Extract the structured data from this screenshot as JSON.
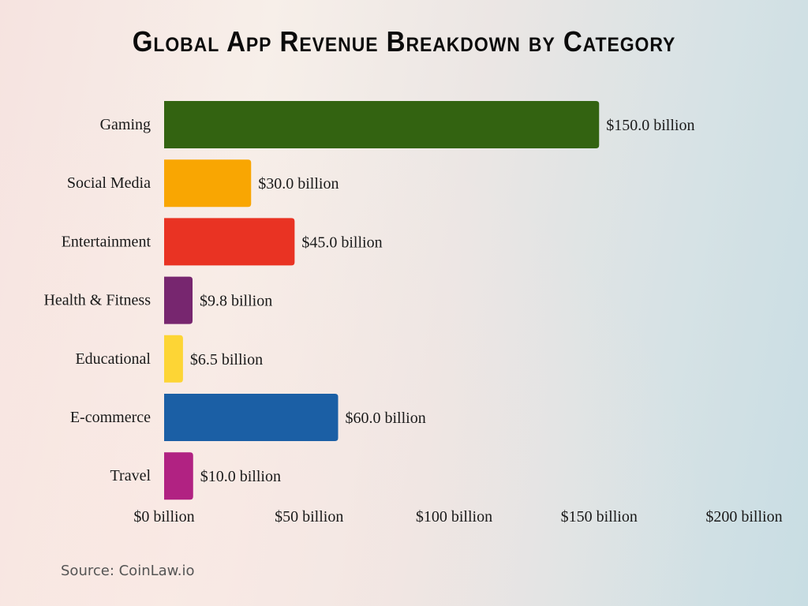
{
  "chart_data": {
    "type": "bar",
    "orientation": "horizontal",
    "title": "Global App Revenue Breakdown by Category",
    "categories": [
      "Gaming",
      "Social Media",
      "Entertainment",
      "Health & Fitness",
      "Educational",
      "E-commerce",
      "Travel"
    ],
    "values": [
      150.0,
      30.0,
      45.0,
      9.8,
      6.5,
      60.0,
      10.0
    ],
    "data_labels": [
      "$150.0 billion",
      "$30.0 billion",
      "$45.0 billion",
      "$9.8 billion",
      "$6.5 billion",
      "$60.0 billion",
      "$10.0 billion"
    ],
    "colors": [
      "#336311",
      "#f9a602",
      "#e93323",
      "#77266f",
      "#fdd535",
      "#1b5fa5",
      "#b12282"
    ],
    "xlim": [
      0,
      200
    ],
    "xticks": [
      0,
      50,
      100,
      150,
      200
    ],
    "xtick_labels": [
      "$0 billion",
      "$50 billion",
      "$100 billion",
      "$150 billion",
      "$200 billion"
    ],
    "xlabel": "",
    "ylabel": "",
    "grid": false,
    "legend": "none"
  },
  "source": "Source: CoinLaw.io"
}
